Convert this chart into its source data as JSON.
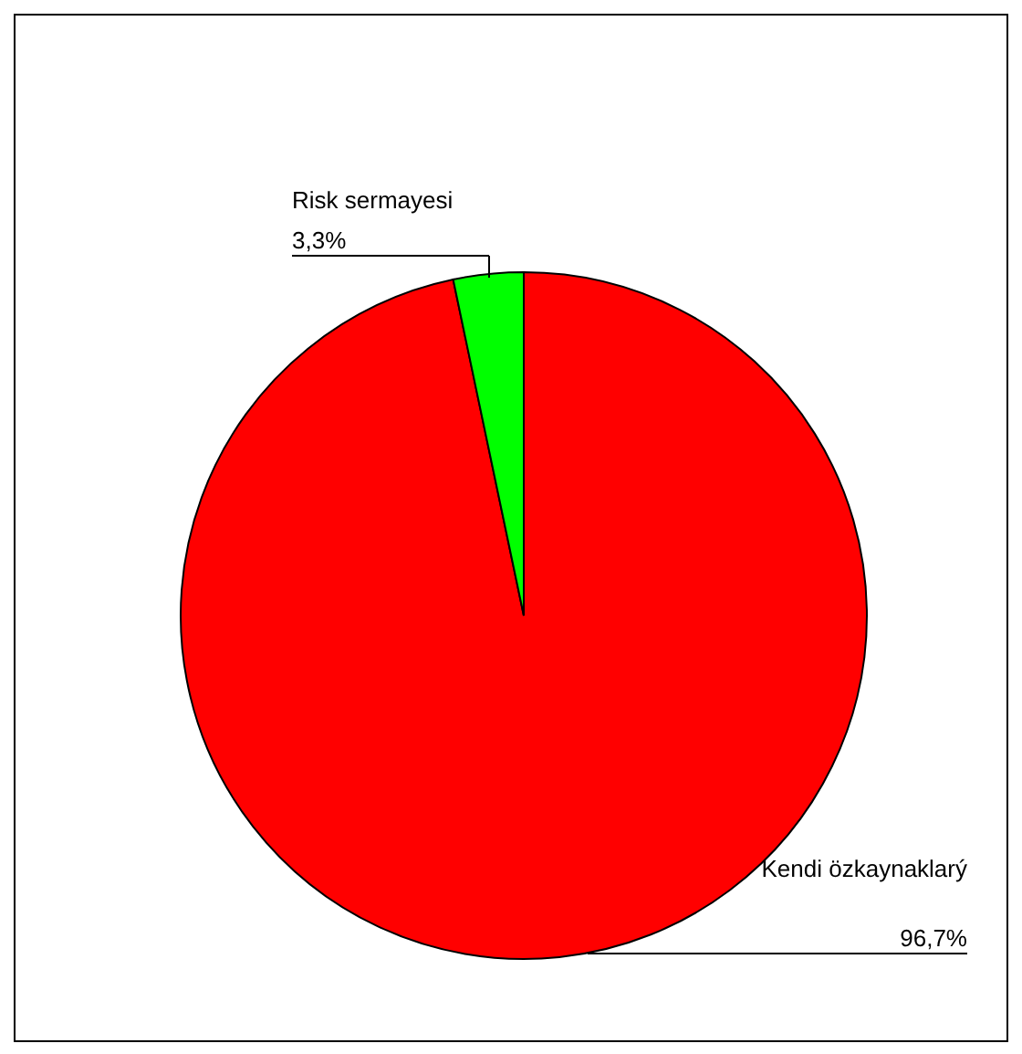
{
  "chart_data": {
    "type": "pie",
    "categories": [
      "Kendi özkaynaklarý",
      "Risk sermayesi"
    ],
    "values": [
      96.7,
      3.3
    ],
    "colors": [
      "#ff0000",
      "#00ff00"
    ],
    "value_labels": [
      "96,7%",
      "3,3%"
    ]
  }
}
